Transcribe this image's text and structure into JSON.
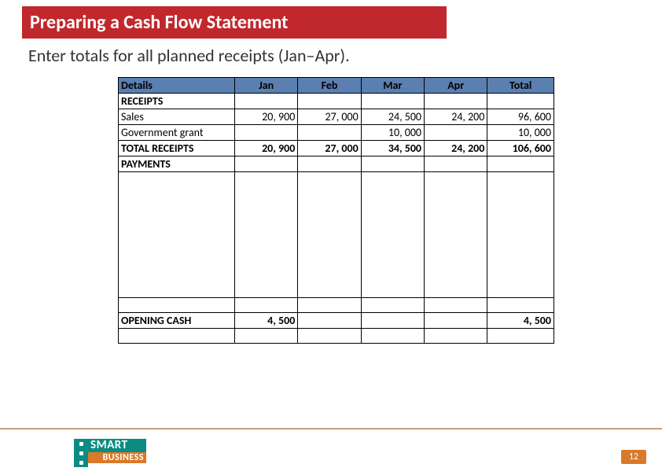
{
  "title": "Preparing a Cash Flow Statement",
  "subtitle": "Enter totals for all planned receipts (Jan–Apr).",
  "table": {
    "columns": [
      "Details",
      "Jan",
      "Feb",
      "Mar",
      "Apr",
      "Total"
    ],
    "header_bg": "#5a7fb0",
    "border_color": "#000000",
    "rows": [
      {
        "label": "RECEIPTS",
        "bold": true,
        "values": [
          "",
          "",
          "",
          "",
          ""
        ]
      },
      {
        "label": "Sales",
        "bold": false,
        "values": [
          "20, 900",
          "27, 000",
          "24, 500",
          "24, 200",
          "96, 600"
        ]
      },
      {
        "label": "Government grant",
        "bold": false,
        "values": [
          "",
          "",
          "10, 000",
          "",
          "10, 000"
        ]
      },
      {
        "label": "TOTAL RECEIPTS",
        "bold": true,
        "values": [
          "20, 900",
          "27, 000",
          "34, 500",
          "24, 200",
          "106, 600"
        ]
      },
      {
        "label": "PAYMENTS",
        "bold": true,
        "values": [
          "",
          "",
          "",
          "",
          ""
        ]
      }
    ],
    "spacer_rows": 2,
    "bottom_section": [
      {
        "label": "",
        "values": [
          "",
          "",
          "",
          "",
          ""
        ]
      },
      {
        "label": "OPENING CASH",
        "bold": true,
        "values": [
          "4, 500",
          "",
          "",
          "",
          "4, 500"
        ]
      },
      {
        "label": "",
        "values": [
          "",
          "",
          "",
          "",
          ""
        ]
      }
    ]
  },
  "footer": {
    "page_number": "12",
    "logo_top": "SMART",
    "logo_bottom": "BUSINESS",
    "accent_color": "#d87a2a",
    "logo_green": "#0b8c82"
  }
}
